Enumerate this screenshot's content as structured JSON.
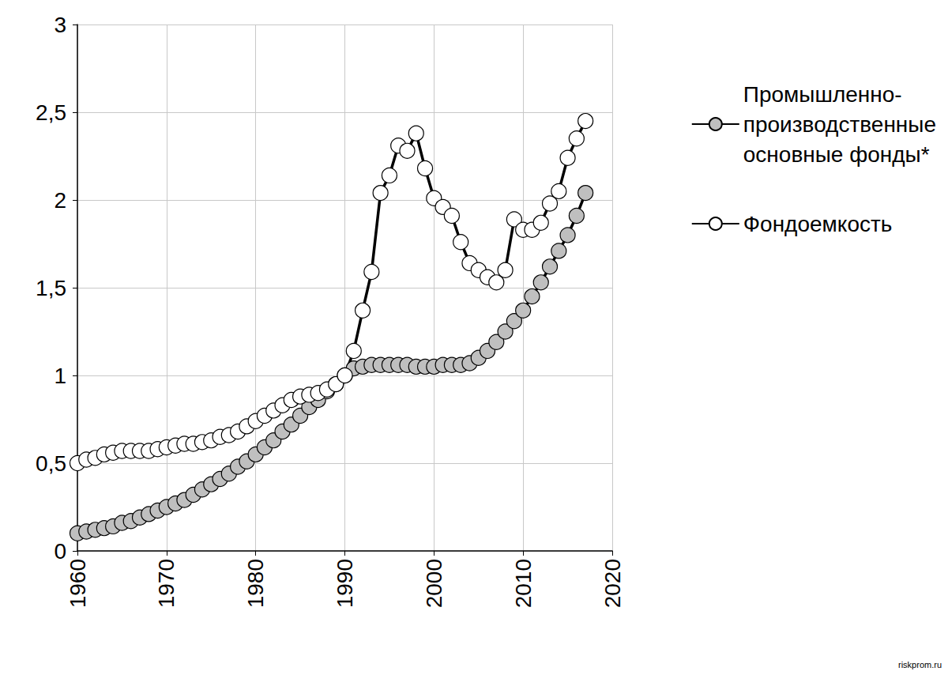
{
  "chart_data": {
    "type": "line",
    "x": [
      1960,
      1961,
      1962,
      1963,
      1964,
      1965,
      1966,
      1967,
      1968,
      1969,
      1970,
      1971,
      1972,
      1973,
      1974,
      1975,
      1976,
      1977,
      1978,
      1979,
      1980,
      1981,
      1982,
      1983,
      1984,
      1985,
      1986,
      1987,
      1988,
      1989,
      1990,
      1991,
      1992,
      1993,
      1994,
      1995,
      1996,
      1997,
      1998,
      1999,
      2000,
      2001,
      2002,
      2003,
      2004,
      2005,
      2006,
      2007,
      2008,
      2009,
      2010,
      2011,
      2012,
      2013,
      2014,
      2015,
      2016,
      2017
    ],
    "series": [
      {
        "name": "Промышленно-\nпроизводственные\nосновные фонды*",
        "color": "#bfbfbf",
        "marker": "circle",
        "line_style": "solid",
        "values": [
          0.1,
          0.11,
          0.12,
          0.13,
          0.14,
          0.16,
          0.17,
          0.19,
          0.21,
          0.23,
          0.25,
          0.27,
          0.29,
          0.32,
          0.35,
          0.38,
          0.41,
          0.44,
          0.48,
          0.51,
          0.55,
          0.59,
          0.63,
          0.68,
          0.72,
          0.77,
          0.82,
          0.86,
          0.91,
          0.95,
          1.0,
          1.04,
          1.05,
          1.06,
          1.06,
          1.06,
          1.06,
          1.06,
          1.05,
          1.05,
          1.05,
          1.06,
          1.06,
          1.06,
          1.07,
          1.1,
          1.14,
          1.19,
          1.25,
          1.31,
          1.37,
          1.45,
          1.53,
          1.62,
          1.71,
          1.8,
          1.91,
          2.04
        ]
      },
      {
        "name": "Фондоемкость",
        "color": "#ffffff",
        "marker": "circle",
        "line_style": "solid",
        "values": [
          0.5,
          0.52,
          0.53,
          0.55,
          0.56,
          0.57,
          0.57,
          0.57,
          0.57,
          0.58,
          0.59,
          0.6,
          0.61,
          0.61,
          0.62,
          0.63,
          0.65,
          0.66,
          0.68,
          0.71,
          0.74,
          0.77,
          0.8,
          0.83,
          0.86,
          0.88,
          0.89,
          0.9,
          0.92,
          0.95,
          1.0,
          1.14,
          1.37,
          1.59,
          2.04,
          2.14,
          2.31,
          2.28,
          2.38,
          2.18,
          2.01,
          1.96,
          1.91,
          1.76,
          1.64,
          1.6,
          1.56,
          1.53,
          1.6,
          1.89,
          1.83,
          1.83,
          1.87,
          1.98,
          2.05,
          2.24,
          2.35,
          2.45
        ]
      }
    ],
    "xlim": [
      1960,
      2020
    ],
    "xticks": [
      1960,
      1970,
      1980,
      1990,
      2000,
      2010,
      2020
    ],
    "ylim": [
      0,
      3
    ],
    "yticks": [
      0,
      {
        "value": 0.5,
        "label": "0,5"
      },
      1,
      {
        "value": 1.5,
        "label": "1,5"
      },
      2,
      {
        "value": 2.5,
        "label": "2,5"
      },
      3
    ],
    "grid": true,
    "legend": "right",
    "annotations": [
      {
        "text": "riskprom.ru"
      }
    ]
  }
}
